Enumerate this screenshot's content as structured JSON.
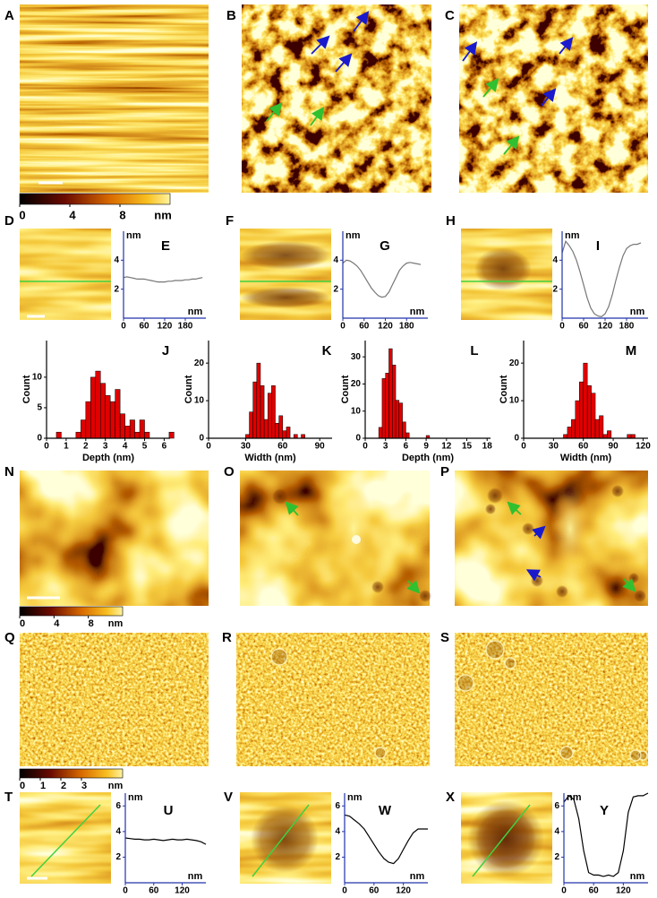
{
  "panels": [
    "A",
    "B",
    "C",
    "D",
    "F",
    "H",
    "N",
    "O",
    "P",
    "Q",
    "R",
    "S",
    "T",
    "V",
    "X"
  ],
  "colorbars": [
    {
      "range": [
        0,
        12
      ],
      "ticks": [
        0,
        4,
        8
      ],
      "unit": "nm"
    },
    {
      "range": [
        0,
        12
      ],
      "ticks": [
        0,
        4,
        8
      ],
      "unit": "nm"
    },
    {
      "range": [
        0,
        5
      ],
      "ticks": [
        0,
        1,
        2,
        3
      ],
      "unit": "nm"
    }
  ],
  "chart_data": [
    {
      "type": "line",
      "label": "E",
      "ylabel": "nm",
      "xlabel": "nm",
      "color": "#777777",
      "x": [
        0,
        10,
        20,
        30,
        40,
        50,
        60,
        70,
        80,
        90,
        100,
        110,
        120,
        130,
        140,
        150,
        160,
        170,
        180,
        190,
        200,
        210,
        220,
        230
      ],
      "values": [
        2.8,
        2.85,
        2.8,
        2.75,
        2.7,
        2.7,
        2.7,
        2.65,
        2.6,
        2.55,
        2.5,
        2.5,
        2.5,
        2.55,
        2.55,
        2.6,
        2.6,
        2.6,
        2.65,
        2.65,
        2.7,
        2.7,
        2.75,
        2.8
      ],
      "xlim": [
        0,
        240
      ],
      "ylim": [
        0,
        6
      ],
      "xticks": [
        0,
        60,
        120,
        180
      ],
      "yticks": [
        2,
        4
      ]
    },
    {
      "type": "line",
      "label": "G",
      "ylabel": "nm",
      "xlabel": "nm",
      "color": "#777777",
      "x": [
        0,
        10,
        20,
        30,
        40,
        50,
        60,
        70,
        80,
        90,
        100,
        110,
        120,
        130,
        140,
        150,
        160,
        170,
        180,
        190,
        200,
        210,
        220
      ],
      "values": [
        3.8,
        4.0,
        3.95,
        3.8,
        3.6,
        3.3,
        2.9,
        2.5,
        2.1,
        1.8,
        1.55,
        1.45,
        1.5,
        1.8,
        2.3,
        2.8,
        3.3,
        3.6,
        3.8,
        3.85,
        3.8,
        3.75,
        3.7
      ],
      "xlim": [
        0,
        240
      ],
      "ylim": [
        0,
        6
      ],
      "xticks": [
        0,
        60,
        120,
        180
      ],
      "yticks": [
        2,
        4
      ]
    },
    {
      "type": "line",
      "label": "I",
      "ylabel": "nm",
      "xlabel": "nm",
      "color": "#777777",
      "x": [
        0,
        10,
        20,
        30,
        40,
        50,
        60,
        70,
        80,
        90,
        100,
        110,
        120,
        130,
        140,
        150,
        160,
        170,
        180,
        190,
        200,
        210,
        220
      ],
      "values": [
        4.5,
        5.3,
        5.0,
        4.6,
        4.0,
        3.2,
        2.3,
        1.4,
        0.7,
        0.3,
        0.15,
        0.1,
        0.3,
        0.8,
        1.6,
        2.6,
        3.5,
        4.3,
        4.8,
        5.0,
        5.1,
        5.1,
        5.2
      ],
      "xlim": [
        0,
        240
      ],
      "ylim": [
        0,
        6
      ],
      "xticks": [
        0,
        60,
        120,
        180
      ],
      "yticks": [
        2,
        4
      ]
    },
    {
      "type": "histogram",
      "label": "J",
      "xlabel": "Depth (nm)",
      "ylabel": "Count",
      "color": "#e00000",
      "bins": [
        0.5,
        0.75,
        1,
        1.25,
        1.5,
        1.75,
        2,
        2.25,
        2.5,
        2.75,
        3,
        3.25,
        3.5,
        3.75,
        4,
        4.25,
        4.5,
        4.75,
        5,
        5.25,
        5.5,
        5.75,
        6,
        6.25,
        6.5
      ],
      "values": [
        1,
        0,
        0,
        0,
        1,
        3,
        6,
        10,
        11,
        9,
        7,
        6,
        8,
        4,
        2,
        3,
        1,
        3,
        1,
        0,
        0,
        0,
        0,
        1
      ],
      "xlim": [
        0,
        6.3
      ],
      "ylim": [
        0,
        16
      ],
      "xticks": [
        0,
        1,
        2,
        3,
        4,
        5,
        6
      ],
      "yticks": [
        0,
        5,
        10
      ]
    },
    {
      "type": "histogram",
      "label": "K",
      "xlabel": "Width (nm)",
      "ylabel": "Count",
      "color": "#e00000",
      "bins": [
        30,
        33,
        36,
        39,
        42,
        45,
        48,
        51,
        54,
        57,
        60,
        63,
        66,
        69,
        72,
        75,
        78
      ],
      "values": [
        1,
        7,
        15,
        20,
        14,
        5,
        12,
        14,
        4,
        6,
        2,
        3,
        0,
        1,
        0,
        1
      ],
      "xlim": [
        0,
        100
      ],
      "ylim": [
        0,
        26
      ],
      "xticks": [
        0,
        30,
        60,
        90
      ],
      "yticks": [
        0,
        10,
        20
      ]
    },
    {
      "type": "histogram",
      "label": "L",
      "xlabel": "Depth (nm)",
      "ylabel": "Count",
      "color": "#e00000",
      "bins": [
        2,
        2.5,
        3,
        3.5,
        4,
        4.5,
        5,
        5.5,
        6,
        6.5,
        7,
        7.5,
        8,
        8.5,
        9,
        9.5
      ],
      "values": [
        4,
        22,
        24,
        33,
        27,
        14,
        13,
        6,
        2,
        0,
        0,
        0,
        0,
        0,
        1
      ],
      "xlim": [
        0,
        18.5
      ],
      "ylim": [
        0,
        36
      ],
      "xticks": [
        0,
        3,
        6,
        9,
        12,
        15,
        18
      ],
      "yticks": [
        0,
        10,
        20,
        30
      ]
    },
    {
      "type": "histogram",
      "label": "M",
      "xlabel": "Width (nm)",
      "ylabel": "Count",
      "color": "#e00000",
      "bins": [
        40,
        44,
        48,
        52,
        56,
        60,
        64,
        68,
        72,
        76,
        80,
        84,
        88,
        92,
        96,
        100,
        104,
        108,
        112
      ],
      "values": [
        1,
        3,
        5,
        10,
        15,
        20,
        14,
        12,
        5,
        6,
        1,
        2,
        0,
        0,
        0,
        0,
        1,
        1
      ],
      "xlim": [
        0,
        125
      ],
      "ylim": [
        0,
        26
      ],
      "xticks": [
        0,
        30,
        60,
        90,
        120
      ],
      "yticks": [
        0,
        10,
        20
      ]
    },
    {
      "type": "line",
      "label": "U",
      "ylabel": "nm",
      "xlabel": "nm",
      "color": "#000000",
      "x": [
        0,
        10,
        20,
        30,
        40,
        50,
        60,
        70,
        80,
        90,
        100,
        110,
        120,
        130,
        140,
        150,
        160,
        170
      ],
      "values": [
        3.5,
        3.45,
        3.4,
        3.4,
        3.35,
        3.35,
        3.4,
        3.35,
        3.3,
        3.35,
        3.4,
        3.35,
        3.35,
        3.4,
        3.35,
        3.3,
        3.2,
        3.0
      ],
      "xlim": [
        0,
        170
      ],
      "ylim": [
        0,
        7
      ],
      "xticks": [
        0,
        60,
        120
      ],
      "yticks": [
        2,
        4,
        6
      ]
    },
    {
      "type": "line",
      "label": "W",
      "ylabel": "nm",
      "xlabel": "nm",
      "color": "#000000",
      "x": [
        0,
        10,
        20,
        30,
        40,
        50,
        60,
        70,
        80,
        90,
        100,
        110,
        120,
        130,
        140,
        150,
        160,
        170
      ],
      "values": [
        5.3,
        5.2,
        4.9,
        4.6,
        4.2,
        3.6,
        3.0,
        2.4,
        1.9,
        1.6,
        1.5,
        1.9,
        2.6,
        3.3,
        3.9,
        4.2,
        4.2,
        4.2
      ],
      "xlim": [
        0,
        170
      ],
      "ylim": [
        0,
        7
      ],
      "xticks": [
        0,
        60,
        120
      ],
      "yticks": [
        2,
        4,
        6
      ]
    },
    {
      "type": "line",
      "label": "Y",
      "ylabel": "nm",
      "xlabel": "nm",
      "color": "#000000",
      "x": [
        0,
        10,
        20,
        30,
        40,
        50,
        60,
        70,
        80,
        90,
        100,
        110,
        120,
        130,
        140,
        150,
        160,
        170
      ],
      "values": [
        6.3,
        6.8,
        6.5,
        5.0,
        2.5,
        0.8,
        0.6,
        0.6,
        0.5,
        0.6,
        0.5,
        0.8,
        2.5,
        5.5,
        6.7,
        6.8,
        6.8,
        7.0
      ],
      "xlim": [
        0,
        170
      ],
      "ylim": [
        0,
        7
      ],
      "xticks": [
        0,
        60,
        120
      ],
      "yticks": [
        2,
        4,
        6
      ]
    }
  ]
}
